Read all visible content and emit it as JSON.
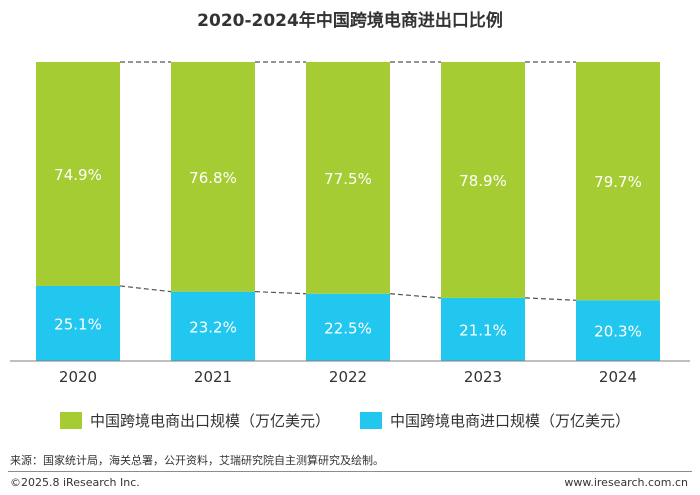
{
  "title": "2020-2024年中国跨境电商进出口比例",
  "chart_data": {
    "type": "bar",
    "stacked": true,
    "categories": [
      "2020",
      "2021",
      "2022",
      "2023",
      "2024"
    ],
    "ylim": [
      0,
      100
    ],
    "series": [
      {
        "name": "中国跨境电商进口规模（万亿美元）",
        "values": [
          25.1,
          23.2,
          22.5,
          21.1,
          20.3
        ],
        "labels": [
          "25.1%",
          "23.2%",
          "22.5%",
          "21.1%",
          "20.3%"
        ],
        "color": "#22c7f0"
      },
      {
        "name": "中国跨境电商出口规模（万亿美元）",
        "values": [
          74.9,
          76.8,
          77.5,
          78.9,
          79.7
        ],
        "labels": [
          "74.9%",
          "76.8%",
          "77.5%",
          "78.9%",
          "79.7%"
        ],
        "color": "#a6cc33"
      }
    ],
    "connector_lines": "dashed",
    "grid": false
  },
  "legend": {
    "export_label": "中国跨境电商出口规模（万亿美元）",
    "export_color": "#a6cc33",
    "import_label": "中国跨境电商进口规模（万亿美元）",
    "import_color": "#22c7f0"
  },
  "footer": {
    "source": "来源：国家统计局，海关总署，公开资料，艾瑞研究院自主测算研究及绘制。",
    "copyright": "©2025.8 iResearch Inc.",
    "website": "www.iresearch.com.cn"
  }
}
